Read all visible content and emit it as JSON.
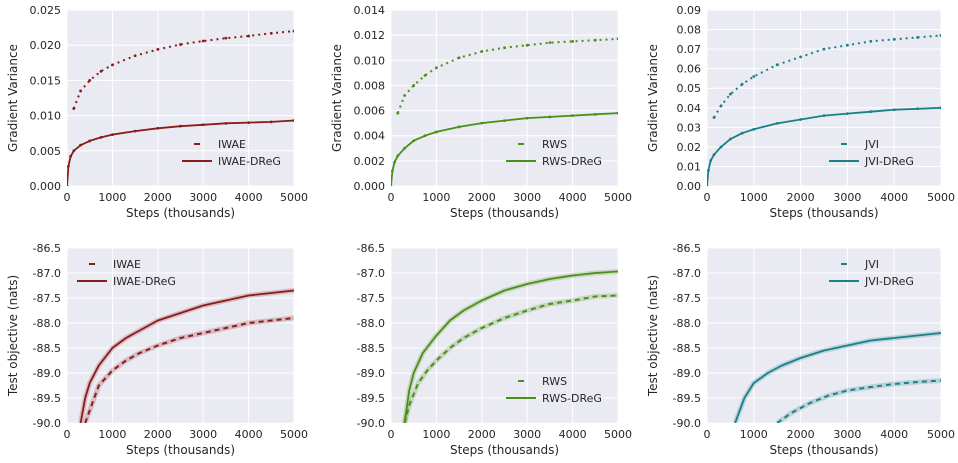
{
  "chart_data": [
    {
      "type": "scatter",
      "xlabel": "Steps (thousands)",
      "ylabel": "Gradient Variance",
      "xlim": [
        0,
        5000
      ],
      "ylim": [
        0,
        0.025
      ],
      "xticks": [
        "0",
        "1000",
        "2000",
        "3000",
        "4000",
        "5000"
      ],
      "yticks": [
        "0.000",
        "0.005",
        "0.010",
        "0.015",
        "0.020",
        "0.025"
      ],
      "grid": true,
      "legend_position": "lower-right",
      "series": [
        {
          "name": "IWAE",
          "style": "dashed",
          "color": "#8b1a1a",
          "x": [
            150,
            300,
            500,
            750,
            1000,
            1500,
            2000,
            2500,
            3000,
            3500,
            4000,
            4500,
            5000
          ],
          "y": [
            0.011,
            0.0135,
            0.015,
            0.0163,
            0.0172,
            0.0185,
            0.0194,
            0.0201,
            0.0206,
            0.021,
            0.0213,
            0.0217,
            0.022
          ]
        },
        {
          "name": "IWAE-DReG",
          "style": "solid",
          "color": "#8b1a1a",
          "x": [
            0,
            30,
            80,
            150,
            300,
            500,
            750,
            1000,
            1500,
            2000,
            2500,
            3000,
            3500,
            4000,
            4500,
            5000
          ],
          "y": [
            0.0,
            0.0028,
            0.0042,
            0.005,
            0.0058,
            0.0064,
            0.0069,
            0.0073,
            0.0078,
            0.0082,
            0.0085,
            0.0087,
            0.0089,
            0.009,
            0.0091,
            0.0093
          ]
        }
      ]
    },
    {
      "type": "scatter",
      "xlabel": "Steps (thousands)",
      "ylabel": "Gradient Variance",
      "xlim": [
        0,
        5000
      ],
      "ylim": [
        0,
        0.014
      ],
      "xticks": [
        "0",
        "1000",
        "2000",
        "3000",
        "4000",
        "5000"
      ],
      "yticks": [
        "0.000",
        "0.002",
        "0.004",
        "0.006",
        "0.008",
        "0.010",
        "0.012",
        "0.014"
      ],
      "grid": true,
      "legend_position": "lower-right",
      "series": [
        {
          "name": "RWS",
          "style": "dashed",
          "color": "#4a8f16",
          "x": [
            150,
            300,
            500,
            750,
            1000,
            1500,
            2000,
            2500,
            3000,
            3500,
            4000,
            4500,
            5000
          ],
          "y": [
            0.0058,
            0.0072,
            0.008,
            0.0088,
            0.0094,
            0.0102,
            0.0107,
            0.011,
            0.0112,
            0.0114,
            0.0115,
            0.0116,
            0.0117
          ]
        },
        {
          "name": "RWS-DReG",
          "style": "solid",
          "color": "#4a8f16",
          "x": [
            0,
            30,
            80,
            150,
            300,
            500,
            750,
            1000,
            1500,
            2000,
            2500,
            3000,
            3500,
            4000,
            4500,
            5000
          ],
          "y": [
            0.0,
            0.0012,
            0.0019,
            0.0024,
            0.003,
            0.0036,
            0.004,
            0.0043,
            0.0047,
            0.005,
            0.0052,
            0.0054,
            0.0055,
            0.0056,
            0.0057,
            0.0058
          ]
        }
      ]
    },
    {
      "type": "scatter",
      "xlabel": "Steps (thousands)",
      "ylabel": "Gradient Variance",
      "xlim": [
        0,
        5000
      ],
      "ylim": [
        0,
        0.09
      ],
      "xticks": [
        "0",
        "1000",
        "2000",
        "3000",
        "4000",
        "5000"
      ],
      "yticks": [
        "0.00",
        "0.01",
        "0.02",
        "0.03",
        "0.04",
        "0.05",
        "0.06",
        "0.07",
        "0.08",
        "0.09"
      ],
      "grid": true,
      "legend_position": "lower-right",
      "series": [
        {
          "name": "JVI",
          "style": "dashed",
          "color": "#1a8088",
          "x": [
            150,
            300,
            500,
            750,
            1000,
            1500,
            2000,
            2500,
            3000,
            3500,
            4000,
            4500,
            5000
          ],
          "y": [
            0.035,
            0.041,
            0.047,
            0.052,
            0.056,
            0.062,
            0.066,
            0.07,
            0.072,
            0.074,
            0.075,
            0.076,
            0.077
          ]
        },
        {
          "name": "JVI-DReG",
          "style": "solid",
          "color": "#1a8088",
          "x": [
            0,
            30,
            80,
            150,
            300,
            500,
            750,
            1000,
            1500,
            2000,
            2500,
            3000,
            3500,
            4000,
            4500,
            5000
          ],
          "y": [
            0.0,
            0.008,
            0.013,
            0.016,
            0.02,
            0.024,
            0.027,
            0.029,
            0.032,
            0.034,
            0.036,
            0.037,
            0.038,
            0.039,
            0.0395,
            0.04
          ]
        }
      ]
    },
    {
      "type": "line",
      "xlabel": "Steps (thousands)",
      "ylabel": "Test objective (nats)",
      "xlim": [
        0,
        5000
      ],
      "ylim": [
        -90.0,
        -86.5
      ],
      "xticks": [
        "0",
        "1000",
        "2000",
        "3000",
        "4000",
        "5000"
      ],
      "yticks": [
        "-86.5",
        "-87.0",
        "-87.5",
        "-88.0",
        "-88.5",
        "-89.0",
        "-89.5",
        "-90.0"
      ],
      "grid": true,
      "legend_position": "top-left",
      "series": [
        {
          "name": "IWAE",
          "style": "dashed",
          "color": "#8b1a1a",
          "x": [
            400,
            500,
            700,
            1000,
            1300,
            1600,
            2000,
            2500,
            3000,
            3500,
            4000,
            4500,
            5000
          ],
          "y": [
            -90.0,
            -89.75,
            -89.25,
            -88.95,
            -88.75,
            -88.6,
            -88.45,
            -88.3,
            -88.2,
            -88.1,
            -88.0,
            -87.95,
            -87.9
          ]
        },
        {
          "name": "IWAE-DReG",
          "style": "solid",
          "color": "#8b1a1a",
          "x": [
            300,
            400,
            500,
            700,
            1000,
            1300,
            1600,
            2000,
            2500,
            3000,
            3500,
            4000,
            4500,
            5000
          ],
          "y": [
            -90.0,
            -89.5,
            -89.2,
            -88.85,
            -88.5,
            -88.3,
            -88.15,
            -87.95,
            -87.8,
            -87.65,
            -87.55,
            -87.45,
            -87.4,
            -87.35
          ]
        }
      ]
    },
    {
      "type": "line",
      "xlabel": "Steps (thousands)",
      "ylabel": "",
      "xlim": [
        0,
        5000
      ],
      "ylim": [
        -90.0,
        -86.5
      ],
      "xticks": [
        "0",
        "1000",
        "2000",
        "3000",
        "4000",
        "5000"
      ],
      "yticks": [
        "-86.5",
        "-87.0",
        "-87.5",
        "-88.0",
        "-88.5",
        "-89.0",
        "-89.5",
        "-90.0"
      ],
      "grid": true,
      "legend_position": "lower-right",
      "series": [
        {
          "name": "RWS",
          "style": "dashed",
          "color": "#4a8f16",
          "x": [
            300,
            400,
            600,
            800,
            1000,
            1300,
            1600,
            2000,
            2500,
            3000,
            3500,
            4000,
            4500,
            5000
          ],
          "y": [
            -90.0,
            -89.65,
            -89.2,
            -88.95,
            -88.75,
            -88.5,
            -88.3,
            -88.1,
            -87.9,
            -87.75,
            -87.62,
            -87.55,
            -87.47,
            -87.45
          ]
        },
        {
          "name": "RWS-DReG",
          "style": "solid",
          "color": "#4a8f16",
          "x": [
            300,
            400,
            500,
            700,
            1000,
            1300,
            1600,
            2000,
            2500,
            3000,
            3500,
            4000,
            4500,
            5000
          ],
          "y": [
            -90.0,
            -89.35,
            -89.0,
            -88.6,
            -88.25,
            -87.95,
            -87.75,
            -87.55,
            -87.35,
            -87.22,
            -87.12,
            -87.05,
            -87.0,
            -86.97
          ]
        }
      ]
    },
    {
      "type": "line",
      "xlabel": "Steps (thousands)",
      "ylabel": "Test objective (nats)",
      "xlim": [
        0,
        5000
      ],
      "ylim": [
        -90.0,
        -86.5
      ],
      "xticks": [
        "0",
        "1000",
        "2000",
        "3000",
        "4000",
        "5000"
      ],
      "yticks": [
        "-86.5",
        "-87.0",
        "-87.5",
        "-88.0",
        "-88.5",
        "-89.0",
        "-89.5",
        "-90.0"
      ],
      "grid": true,
      "legend_position": "top-right",
      "series": [
        {
          "name": "JVI",
          "style": "dashed",
          "color": "#1a8088",
          "x": [
            1500,
            1800,
            2200,
            2600,
            3000,
            3500,
            4000,
            4500,
            5000
          ],
          "y": [
            -90.0,
            -89.8,
            -89.6,
            -89.45,
            -89.35,
            -89.28,
            -89.22,
            -89.18,
            -89.15
          ]
        },
        {
          "name": "JVI-DReG",
          "style": "solid",
          "color": "#1a8088",
          "x": [
            600,
            800,
            1000,
            1300,
            1600,
            2000,
            2500,
            3000,
            3500,
            4000,
            4500,
            5000
          ],
          "y": [
            -90.0,
            -89.5,
            -89.2,
            -89.0,
            -88.85,
            -88.7,
            -88.55,
            -88.45,
            -88.35,
            -88.3,
            -88.25,
            -88.2
          ]
        }
      ]
    }
  ]
}
